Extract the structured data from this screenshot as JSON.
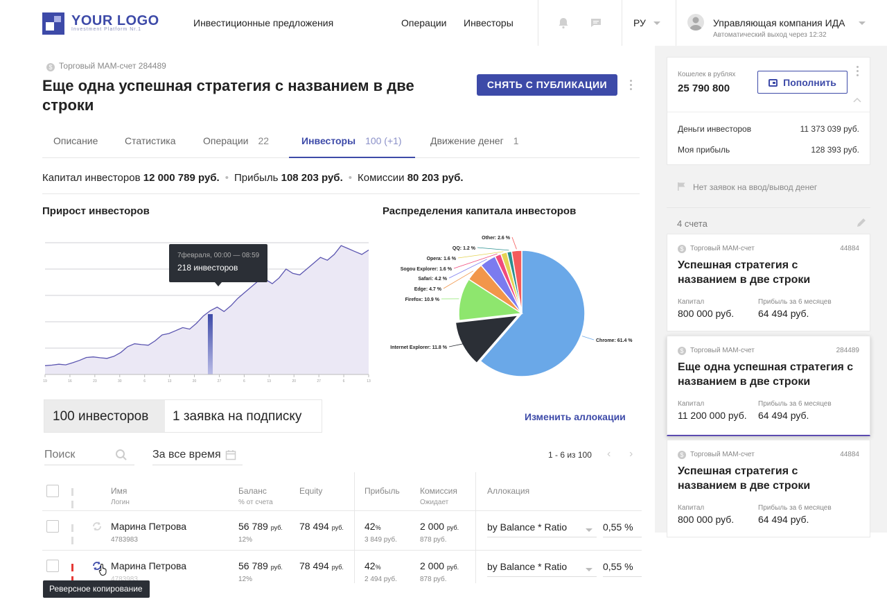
{
  "header": {
    "logo_text": "YOUR LOGO",
    "logo_sub": "Investment Platform Nr.1",
    "nav": [
      "Инвестиционные предложения",
      "Операции",
      "Инвесторы"
    ],
    "lang": "РУ",
    "company": "Управляющая компания ИДА",
    "autologout": "Автоматический выход через 12:32"
  },
  "account": {
    "type_label": "Торговый МАМ-счет 284489",
    "title": "Еще одна успешная стратегия с названием в две строки",
    "unpublish_button": "СНЯТЬ С ПУБЛИКАЦИИ"
  },
  "tabs": [
    {
      "label": "Описание",
      "count": ""
    },
    {
      "label": "Статистика",
      "count": ""
    },
    {
      "label": "Операции",
      "count": "22"
    },
    {
      "label": "Инвесторы",
      "count": "100 (+1)"
    },
    {
      "label": "Движение денег",
      "count": "1"
    }
  ],
  "summary": {
    "capital_label": "Капитал инвесторов",
    "capital_value": "12 000 789 руб.",
    "profit_label": "Прибыль",
    "profit_value": "108 203 руб.",
    "commission_label": "Комиссии",
    "commission_value": "80 203 руб."
  },
  "growth_chart": {
    "title": "Прирост инвесторов",
    "tooltip_date": "7февраля, 00:00 — 08:59",
    "tooltip_value": "218 инвесторов"
  },
  "chart_data": [
    {
      "type": "area",
      "title": "Прирост инвесторов",
      "x_ticks": [
        "19",
        "16",
        "23",
        "30",
        "6",
        "13",
        "20",
        "27",
        "6",
        "13",
        "20",
        "27",
        "6",
        "13"
      ],
      "highlight_x": "27",
      "highlight_value": 218,
      "values": [
        30,
        32,
        35,
        33,
        40,
        48,
        58,
        60,
        57,
        55,
        62,
        75,
        95,
        105,
        102,
        100,
        115,
        135,
        140,
        150,
        160,
        155,
        175,
        200,
        218,
        230,
        215,
        235,
        260,
        280,
        300,
        320,
        325,
        310,
        330,
        360,
        345,
        340,
        360,
        380,
        400,
        390,
        410,
        440,
        430,
        420,
        410,
        425
      ]
    },
    {
      "type": "pie",
      "title": "Распределения капитала инвесторов",
      "series": [
        {
          "name": "Chrome",
          "value": 61.4,
          "label": "Chrome: 61.4 %",
          "color": "#6aa8e8"
        },
        {
          "name": "Internet Explorer",
          "value": 11.8,
          "label": "Internet Explorer: 11.8 %",
          "color": "#2b2f36"
        },
        {
          "name": "Firefox",
          "value": 10.9,
          "label": "Firefox: 10.9 %",
          "color": "#8ee66e"
        },
        {
          "name": "Edge",
          "value": 4.7,
          "label": "Edge: 4.7 %",
          "color": "#f2964a"
        },
        {
          "name": "Safari",
          "value": 4.2,
          "label": "Safari: 4.2 %",
          "color": "#7b7bef"
        },
        {
          "name": "Sogou Explorer",
          "value": 1.6,
          "label": "Sogou Explorer: 1.6 %",
          "color": "#f04a7c"
        },
        {
          "name": "Opera",
          "value": 1.6,
          "label": "Opera: 1.6 %",
          "color": "#e4d354"
        },
        {
          "name": "QQ",
          "value": 1.2,
          "label": "QQ: 1.2 %",
          "color": "#2a908f"
        },
        {
          "name": "Other",
          "value": 2.6,
          "label": "Other: 2.6 %",
          "color": "#f45b5b"
        }
      ]
    }
  ],
  "investors": {
    "seg_active": "100 инвесторов",
    "seg_other": "1 заявка на подписку",
    "change_link": "Изменить аллокации",
    "search_placeholder": "Поиск",
    "period": "За все время",
    "pager": "1 - 6 из 100",
    "columns": {
      "name": "Имя",
      "name_sub": "Логин",
      "balance": "Баланс",
      "balance_sub": "% от счета",
      "equity": "Equity",
      "profit": "Прибыль",
      "commission": "Комиссия",
      "commission_sub": "Ожидает",
      "allocation": "Аллокация"
    },
    "rows": [
      {
        "name": "Марина Петрова",
        "login": "4783983",
        "balance": "56 789",
        "balance_unit": "руб.",
        "balance_pct": "12%",
        "equity": "78 494",
        "equity_unit": "руб.",
        "profit": "42",
        "profit_unit": "%",
        "profit_sub": "3 849 руб.",
        "commission": "2 000",
        "commission_unit": "руб.",
        "commission_sub": "878 руб.",
        "allocation": "by Balance * Ratio",
        "ratio": "0,55 %"
      },
      {
        "name": "Марина Петрова",
        "login": "4783983",
        "balance": "56 789",
        "balance_unit": "руб.",
        "balance_pct": "12%",
        "equity": "78 494",
        "equity_unit": "руб.",
        "profit": "42",
        "profit_unit": "%",
        "profit_sub": "2 494 руб.",
        "commission": "2 000",
        "commission_unit": "руб.",
        "commission_sub": "878 руб.",
        "allocation": "by Balance * Ratio",
        "ratio": "0,55 %"
      }
    ],
    "tooltip": "Реверсное копирование"
  },
  "sidebar": {
    "wallet_label": "Кошелек в рублях",
    "wallet_value": "25 790 800",
    "topup_button": "Пополнить",
    "investors_money_label": "Деньги инвесторов",
    "investors_money_value": "11 373 039 руб.",
    "my_profit_label": "Моя прибыль",
    "my_profit_value": "128 393 руб.",
    "no_requests": "Нет заявок на ввод/вывод денег",
    "accounts_count": "4 счета",
    "accounts": [
      {
        "type": "Торговый МАМ-счет",
        "number": "44884",
        "title": "Успешная стратегия с названием в две строки",
        "capital_label": "Капитал",
        "capital": "800 000 руб.",
        "profit_label": "Прибыль за 6 месяцев",
        "profit": "64 494 руб."
      },
      {
        "type": "Торговый МАМ-счет",
        "number": "284489",
        "title": "Еще одна успешная стратегия с названием в две строки",
        "capital_label": "Капитал",
        "capital": "11 200 000 руб.",
        "profit_label": "Прибыль за 6 месяцев",
        "profit": "64 494 руб."
      },
      {
        "type": "Торговый МАМ-счет",
        "number": "44884",
        "title": "Успешная стратегия с названием в две строки",
        "capital_label": "Капитал",
        "capital": "800 000 руб.",
        "profit_label": "Прибыль за 6 месяцев",
        "profit": "64 494 руб."
      }
    ]
  },
  "colors": {
    "accent": "#3d4aa8",
    "dark": "#2b2f36",
    "area_fill": "#ebe8f5",
    "line": "#5b55b0",
    "pause_red": "#e53935"
  }
}
